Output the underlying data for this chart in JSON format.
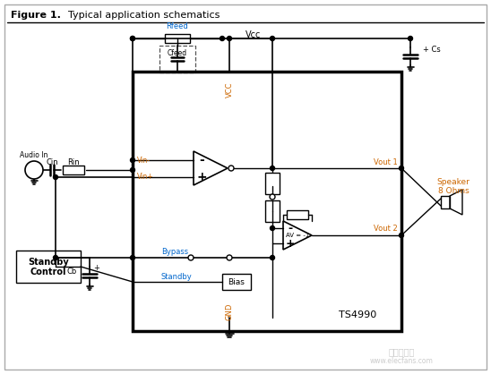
{
  "title_bold": "Figure 1.",
  "title_normal": "Typical application schematics",
  "background_color": "#ffffff",
  "border_color": "#aaaaaa",
  "ic_label": "TS4990",
  "vcc_label": "Vcc",
  "gnd_label": "GND"
}
